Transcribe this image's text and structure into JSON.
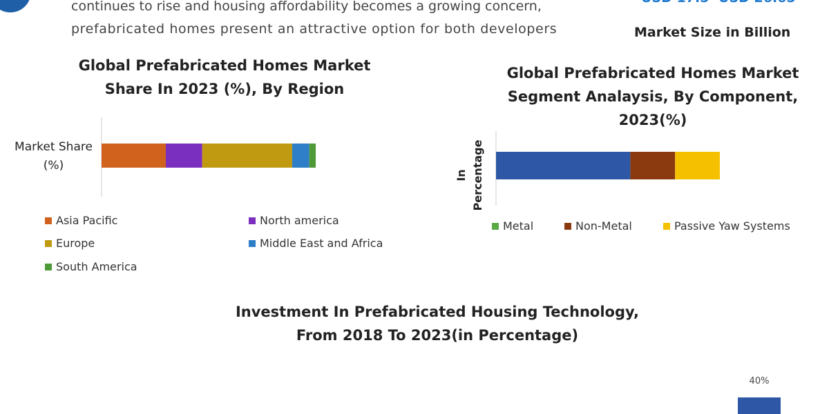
{
  "header": {
    "text_lines": [
      "continues to rise and housing affordability becomes a growing concern,",
      "prefabricated homes present an attractive option for both developers"
    ],
    "market_values": [
      "USD 17.5",
      "USD 26.65"
    ],
    "market_label": "Market Size in Billion"
  },
  "chart_data": [
    {
      "type": "stacked-bar-horizontal",
      "title": "Global Prefabricated Homes Market Share In 2023 (%), By Region",
      "categories": [
        "Market Share (%)"
      ],
      "xlim": [
        0,
        100
      ],
      "series": [
        {
          "name": "Asia Pacific",
          "color": "#d0621e",
          "values": [
            30
          ]
        },
        {
          "name": "North america",
          "color": "#7b2fbf",
          "values": [
            17
          ]
        },
        {
          "name": "Europe",
          "color": "#c09a10",
          "values": [
            42
          ]
        },
        {
          "name": "Middle East and Africa",
          "color": "#2f7fc8",
          "values": [
            8
          ]
        },
        {
          "name": "South America",
          "color": "#4e9a38",
          "values": [
            3
          ]
        }
      ]
    },
    {
      "type": "stacked-bar-horizontal",
      "title": "Global Prefabricated Homes Market Segment Analaysis, By Component, 2023(%)",
      "y_label": "In Percentage",
      "categories": [
        null
      ],
      "xlim": [
        0,
        100
      ],
      "series": [
        {
          "name": "Metal",
          "color": "#2e57a6",
          "legend_color": "#5aaa46",
          "values": [
            60
          ]
        },
        {
          "name": "Non-Metal",
          "color": "#8b3a10",
          "values": [
            20
          ]
        },
        {
          "name": "Passive Yaw Systems",
          "color": "#f5c000",
          "values": [
            20
          ]
        }
      ]
    },
    {
      "type": "bar",
      "title": "Investment In Prefabricated Housing Technology, From 2018 To 2023(in Percentage)",
      "categories": [
        null
      ],
      "values": [
        40
      ],
      "value_labels": [
        "40%"
      ],
      "color": "#2e57a6"
    }
  ]
}
